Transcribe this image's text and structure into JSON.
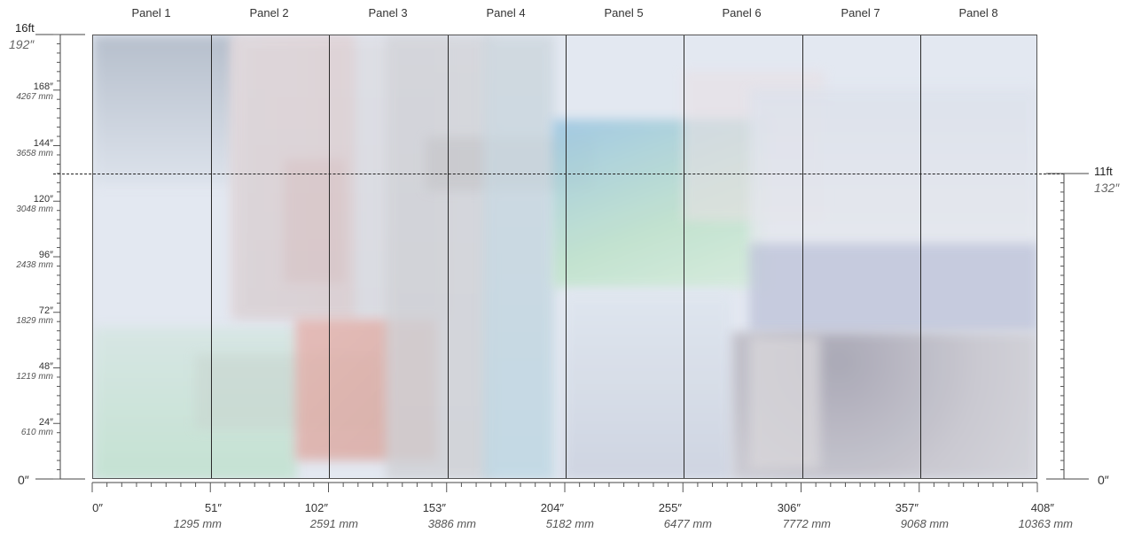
{
  "panels": [
    "Panel 1",
    "Panel 2",
    "Panel 3",
    "Panel 4",
    "Panel 5",
    "Panel 6",
    "Panel 7",
    "Panel 8"
  ],
  "left_axis": {
    "top_ft": "16ft",
    "top_in": "192″",
    "bottom": "0″",
    "ticks": [
      {
        "in": "168″",
        "mm": "4267 mm"
      },
      {
        "in": "144″",
        "mm": "3658 mm"
      },
      {
        "in": "120″",
        "mm": "3048 mm"
      },
      {
        "in": "96″",
        "mm": "2438 mm"
      },
      {
        "in": "72″",
        "mm": "1829 mm"
      },
      {
        "in": "48″",
        "mm": "1219 mm"
      },
      {
        "in": "24″",
        "mm": "610 mm"
      }
    ]
  },
  "right_axis": {
    "top_ft": "11ft",
    "top_in": "132″",
    "bottom": "0″"
  },
  "bottom_axis": {
    "ticks": [
      {
        "in": "0″",
        "mm": ""
      },
      {
        "in": "51″",
        "mm": "1295 mm"
      },
      {
        "in": "102″",
        "mm": "2591 mm"
      },
      {
        "in": "153″",
        "mm": "3886 mm"
      },
      {
        "in": "204″",
        "mm": "5182 mm"
      },
      {
        "in": "255″",
        "mm": "6477 mm"
      },
      {
        "in": "306″",
        "mm": "7772 mm"
      },
      {
        "in": "357″",
        "mm": "9068 mm"
      },
      {
        "in": "408″",
        "mm": "10363 mm"
      }
    ]
  },
  "colors": {
    "grey_blue": "#b9c2cf",
    "pink": "#e2b6b2",
    "blue": "#9cc6e2",
    "green": "#bfe0cc",
    "lavender": "#c3c8dc",
    "mauve": "#b6b0ba",
    "light_blue": "#c6d8e6"
  }
}
